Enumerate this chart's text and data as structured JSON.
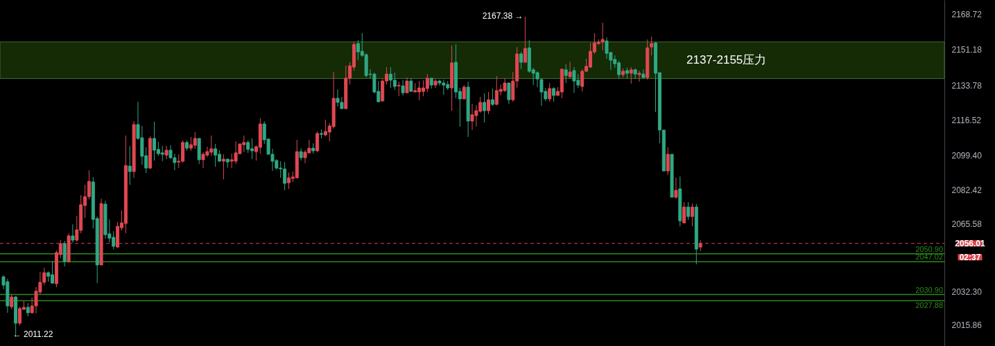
{
  "chart_data": {
    "type": "candlestick",
    "categories": [
      null,
      null,
      null,
      null,
      null,
      null,
      null,
      null,
      null,
      null,
      null,
      null,
      null,
      null,
      null,
      null,
      null,
      null,
      null,
      null,
      null,
      null,
      null,
      null,
      null,
      null,
      null,
      null,
      null,
      null,
      null,
      null,
      null,
      null,
      null,
      null,
      null,
      null,
      null,
      null,
      null,
      null,
      null,
      null,
      null,
      null,
      null,
      null,
      null,
      null,
      null,
      null,
      null,
      null,
      null,
      null,
      null,
      null,
      null,
      null,
      null,
      null,
      null,
      null,
      null,
      null,
      null,
      null,
      null,
      null,
      null,
      null,
      null,
      null,
      null,
      null,
      null,
      null,
      null,
      null,
      null,
      null,
      null,
      null,
      null,
      null,
      null,
      null,
      null,
      null,
      null,
      null,
      null,
      null,
      null,
      null,
      null,
      null,
      null,
      null,
      null,
      null,
      null,
      null,
      null,
      null,
      null,
      null,
      null,
      null,
      null,
      null,
      null,
      null,
      null,
      null,
      null,
      null,
      null,
      null,
      null,
      null,
      null,
      null,
      null,
      null,
      null,
      null,
      null,
      null,
      null,
      null,
      null,
      null,
      null,
      null,
      null,
      null,
      null,
      null,
      null,
      null,
      null,
      null,
      null,
      null,
      null,
      null,
      null,
      null,
      null,
      null,
      null,
      null,
      null,
      null,
      null,
      null,
      null,
      null,
      null,
      null,
      null,
      null,
      null,
      null,
      null,
      null,
      null,
      null,
      null,
      null,
      null,
      null,
      null,
      null,
      null,
      null,
      null,
      null,
      null,
      null,
      null,
      null,
      null,
      null,
      null,
      null,
      null,
      null,
      null,
      null,
      null,
      null,
      null,
      null,
      null,
      null,
      null,
      null,
      null,
      null,
      null,
      null,
      null,
      null,
      null,
      null,
      null,
      null,
      null,
      null,
      null,
      null,
      null,
      null,
      null,
      null,
      null,
      null,
      null,
      null,
      null,
      null,
      null,
      null,
      null,
      null,
      null,
      null,
      null
    ],
    "ohlc": [
      [
        2039.6,
        2040.3,
        2033.5,
        2035.5
      ],
      [
        2037.2,
        2038.6,
        2021.9,
        2025.3
      ],
      [
        2024.9,
        2031.1,
        2023.6,
        2029.7
      ],
      [
        2029.7,
        2030.1,
        2011.22,
        2016.8
      ],
      [
        2016.8,
        2024.9,
        2015.8,
        2024.0
      ],
      [
        2023.6,
        2027.7,
        2023.3,
        2024.6
      ],
      [
        2024.6,
        2026.7,
        2020.2,
        2021.9
      ],
      [
        2021.9,
        2029.4,
        2021.6,
        2025.3
      ],
      [
        2025.3,
        2034.5,
        2021.6,
        2032.5
      ],
      [
        2032.1,
        2042.0,
        2031.1,
        2036.9
      ],
      [
        2036.9,
        2044.0,
        2035.5,
        2041.6
      ],
      [
        2041.6,
        2042.3,
        2037.2,
        2039.9
      ],
      [
        2040.6,
        2047.4,
        2036.2,
        2036.5
      ],
      [
        2036.2,
        2052.5,
        2034.5,
        2051.5
      ],
      [
        2050.5,
        2057.6,
        2048.8,
        2055.9
      ],
      [
        2055.9,
        2057.3,
        2044.7,
        2047.1
      ],
      [
        2047.1,
        2061.0,
        2046.4,
        2059.7
      ],
      [
        2059.7,
        2065.4,
        2056.3,
        2057.6
      ],
      [
        2057.6,
        2069.5,
        2056.9,
        2062.7
      ],
      [
        2062.4,
        2079.7,
        2061.0,
        2075.0
      ],
      [
        2074.6,
        2084.8,
        2068.5,
        2079.0
      ],
      [
        2079.0,
        2091.9,
        2077.7,
        2086.5
      ],
      [
        2086.2,
        2088.6,
        2063.4,
        2067.8
      ],
      [
        2068.2,
        2069.2,
        2036.5,
        2045.4
      ],
      [
        2045.4,
        2078.0,
        2045.4,
        2075.6
      ],
      [
        2075.3,
        2077.0,
        2058.3,
        2060.3
      ],
      [
        2060.7,
        2067.8,
        2056.6,
        2058.6
      ],
      [
        2059.0,
        2062.0,
        2053.2,
        2054.6
      ],
      [
        2054.2,
        2066.5,
        2053.9,
        2064.4
      ],
      [
        2063.7,
        2072.2,
        2062.4,
        2066.1
      ],
      [
        2065.8,
        2109.0,
        2061.0,
        2094.3
      ],
      [
        2094.0,
        2103.9,
        2084.8,
        2091.3
      ],
      [
        2091.3,
        2116.1,
        2088.2,
        2114.4
      ],
      [
        2114.4,
        2125.6,
        2106.9,
        2107.6
      ],
      [
        2107.9,
        2113.7,
        2094.7,
        2098.8
      ],
      [
        2099.1,
        2103.2,
        2090.6,
        2093.0
      ],
      [
        2093.0,
        2108.6,
        2092.6,
        2107.6
      ],
      [
        2107.6,
        2115.8,
        2096.7,
        2101.8
      ],
      [
        2102.2,
        2105.9,
        2099.1,
        2100.1
      ],
      [
        2100.5,
        2103.9,
        2096.4,
        2099.8
      ],
      [
        2099.4,
        2103.9,
        2097.4,
        2101.8
      ],
      [
        2101.8,
        2104.2,
        2097.4,
        2098.1
      ],
      [
        2098.1,
        2100.1,
        2091.9,
        2095.7
      ],
      [
        2096.0,
        2099.8,
        2093.0,
        2096.4
      ],
      [
        2096.4,
        2106.6,
        2095.7,
        2105.6
      ],
      [
        2105.6,
        2106.6,
        2101.5,
        2102.8
      ],
      [
        2102.8,
        2108.3,
        2101.5,
        2104.5
      ],
      [
        2104.2,
        2110.7,
        2102.5,
        2107.6
      ],
      [
        2107.6,
        2107.6,
        2095.0,
        2097.1
      ],
      [
        2097.1,
        2100.8,
        2093.0,
        2099.8
      ],
      [
        2099.4,
        2103.5,
        2098.4,
        2101.1
      ],
      [
        2100.8,
        2109.0,
        2099.1,
        2102.5
      ],
      [
        2102.5,
        2104.9,
        2093.7,
        2099.4
      ],
      [
        2099.8,
        2101.8,
        2096.0,
        2096.4
      ],
      [
        2096.4,
        2099.8,
        2087.5,
        2097.4
      ],
      [
        2097.4,
        2097.7,
        2093.3,
        2096.0
      ],
      [
        2096.4,
        2100.1,
        2093.0,
        2097.1
      ],
      [
        2096.4,
        2106.2,
        2095.0,
        2100.5
      ],
      [
        2100.1,
        2104.9,
        2099.8,
        2104.9
      ],
      [
        2104.5,
        2109.0,
        2100.8,
        2105.6
      ],
      [
        2105.6,
        2106.6,
        2100.5,
        2102.2
      ],
      [
        2102.5,
        2107.6,
        2097.4,
        2101.5
      ],
      [
        2101.1,
        2104.2,
        2096.7,
        2103.5
      ],
      [
        2103.2,
        2117.5,
        2100.1,
        2114.7
      ],
      [
        2114.7,
        2116.1,
        2104.9,
        2106.9
      ],
      [
        2107.3,
        2107.3,
        2099.8,
        2099.8
      ],
      [
        2099.8,
        2102.5,
        2091.6,
        2096.4
      ],
      [
        2096.7,
        2097.4,
        2092.3,
        2093.0
      ],
      [
        2093.0,
        2096.4,
        2088.2,
        2092.6
      ],
      [
        2092.6,
        2096.0,
        2082.1,
        2085.5
      ],
      [
        2085.8,
        2090.9,
        2082.8,
        2088.2
      ],
      [
        2087.9,
        2091.3,
        2086.2,
        2088.6
      ],
      [
        2088.2,
        2106.9,
        2088.2,
        2101.1
      ],
      [
        2101.1,
        2102.8,
        2096.7,
        2098.1
      ],
      [
        2098.1,
        2101.8,
        2095.4,
        2100.8
      ],
      [
        2100.5,
        2106.9,
        2100.1,
        2102.8
      ],
      [
        2102.8,
        2105.2,
        2100.1,
        2101.5
      ],
      [
        2101.5,
        2111.0,
        2100.8,
        2110.0
      ],
      [
        2110.0,
        2112.0,
        2107.6,
        2109.6
      ],
      [
        2109.3,
        2116.8,
        2108.6,
        2111.0
      ],
      [
        2110.7,
        2115.1,
        2106.2,
        2113.7
      ],
      [
        2113.4,
        2140.2,
        2112.4,
        2127.3
      ],
      [
        2127.3,
        2131.7,
        2123.2,
        2125.3
      ],
      [
        2125.3,
        2128.0,
        2122.2,
        2122.2
      ],
      [
        2122.2,
        2143.3,
        2122.2,
        2137.2
      ],
      [
        2137.2,
        2145.0,
        2134.1,
        2143.3
      ],
      [
        2142.6,
        2155.2,
        2140.9,
        2153.8
      ],
      [
        2154.2,
        2155.9,
        2146.0,
        2150.1
      ],
      [
        2150.4,
        2159.3,
        2147.7,
        2148.4
      ],
      [
        2148.7,
        2149.4,
        2137.5,
        2138.5
      ],
      [
        2139.2,
        2141.6,
        2137.2,
        2139.0
      ],
      [
        2139.2,
        2139.9,
        2129.7,
        2130.4
      ],
      [
        2130.7,
        2135.8,
        2125.3,
        2125.6
      ],
      [
        2126.0,
        2136.8,
        2125.6,
        2135.8
      ],
      [
        2135.8,
        2142.6,
        2134.1,
        2139.2
      ],
      [
        2139.2,
        2142.6,
        2132.4,
        2136.2
      ],
      [
        2136.2,
        2139.9,
        2131.4,
        2133.1
      ],
      [
        2133.4,
        2135.5,
        2128.3,
        2133.7
      ],
      [
        2133.4,
        2136.2,
        2128.7,
        2130.0
      ],
      [
        2130.0,
        2137.5,
        2130.0,
        2135.8
      ],
      [
        2135.8,
        2137.2,
        2130.4,
        2130.7
      ],
      [
        2130.4,
        2134.8,
        2130.4,
        2131.1
      ],
      [
        2130.4,
        2135.8,
        2126.3,
        2132.4
      ],
      [
        2130.7,
        2136.2,
        2128.3,
        2132.4
      ],
      [
        2132.1,
        2139.2,
        2130.4,
        2137.2
      ],
      [
        2137.2,
        2137.2,
        2132.1,
        2133.8
      ],
      [
        2133.8,
        2136.8,
        2132.4,
        2135.8
      ],
      [
        2135.8,
        2136.5,
        2133.4,
        2134.8
      ],
      [
        2134.8,
        2136.5,
        2129.0,
        2133.8
      ],
      [
        2134.1,
        2135.8,
        2131.4,
        2132.4
      ],
      [
        2132.4,
        2153.2,
        2121.2,
        2144.7
      ],
      [
        2145.0,
        2153.8,
        2127.3,
        2130.4
      ],
      [
        2130.7,
        2132.4,
        2113.4,
        2127.0
      ],
      [
        2127.0,
        2133.8,
        2127.0,
        2132.8
      ],
      [
        2132.8,
        2135.5,
        2108.3,
        2116.1
      ],
      [
        2116.1,
        2124.6,
        2111.7,
        2119.2
      ],
      [
        2118.8,
        2123.9,
        2113.4,
        2121.2
      ],
      [
        2120.9,
        2128.0,
        2120.2,
        2125.3
      ],
      [
        2125.3,
        2129.7,
        2115.4,
        2121.2
      ],
      [
        2121.2,
        2130.4,
        2119.5,
        2126.6
      ],
      [
        2126.6,
        2132.1,
        2123.6,
        2124.3
      ],
      [
        2124.3,
        2138.2,
        2123.9,
        2131.1
      ],
      [
        2130.7,
        2134.1,
        2128.7,
        2131.7
      ],
      [
        2131.1,
        2137.2,
        2130.4,
        2134.8
      ],
      [
        2134.8,
        2135.1,
        2124.6,
        2126.6
      ],
      [
        2126.6,
        2140.2,
        2125.6,
        2135.8
      ],
      [
        2135.8,
        2152.5,
        2132.4,
        2149.1
      ],
      [
        2149.1,
        2150.1,
        2141.6,
        2145.0
      ],
      [
        2145.0,
        2167.38,
        2145.0,
        2151.8
      ],
      [
        2152.1,
        2155.9,
        2139.9,
        2140.6
      ],
      [
        2141.3,
        2142.3,
        2133.8,
        2139.6
      ],
      [
        2139.9,
        2140.6,
        2132.8,
        2136.8
      ],
      [
        2136.5,
        2137.2,
        2123.6,
        2130.4
      ],
      [
        2130.7,
        2132.4,
        2126.0,
        2127.0
      ],
      [
        2127.0,
        2134.8,
        2125.6,
        2132.1
      ],
      [
        2132.1,
        2132.8,
        2125.6,
        2128.7
      ],
      [
        2128.7,
        2132.8,
        2128.7,
        2130.7
      ],
      [
        2130.4,
        2141.9,
        2127.3,
        2141.6
      ],
      [
        2141.3,
        2144.0,
        2134.8,
        2138.5
      ],
      [
        2137.9,
        2145.3,
        2137.2,
        2140.2
      ],
      [
        2140.9,
        2142.6,
        2130.0,
        2135.8
      ],
      [
        2136.2,
        2139.2,
        2132.4,
        2133.8
      ],
      [
        2133.1,
        2141.6,
        2130.7,
        2140.6
      ],
      [
        2140.6,
        2146.7,
        2140.2,
        2143.0
      ],
      [
        2142.6,
        2154.5,
        2142.3,
        2150.4
      ],
      [
        2150.1,
        2159.3,
        2149.1,
        2154.5
      ],
      [
        2154.2,
        2156.2,
        2153.5,
        2154.9
      ],
      [
        2154.9,
        2164.4,
        2150.8,
        2156.2
      ],
      [
        2155.5,
        2157.2,
        2146.7,
        2149.4
      ],
      [
        2149.8,
        2150.1,
        2141.3,
        2146.0
      ],
      [
        2146.4,
        2148.4,
        2142.3,
        2144.3
      ],
      [
        2144.7,
        2145.7,
        2136.8,
        2138.9
      ],
      [
        2138.9,
        2141.9,
        2137.5,
        2140.6
      ],
      [
        2140.9,
        2142.3,
        2137.2,
        2139.6
      ],
      [
        2139.6,
        2142.6,
        2134.5,
        2141.3
      ],
      [
        2141.3,
        2141.9,
        2136.8,
        2139.2
      ],
      [
        2138.9,
        2140.9,
        2135.5,
        2139.6
      ],
      [
        2139.2,
        2141.6,
        2137.2,
        2137.5
      ],
      [
        2137.5,
        2156.2,
        2136.5,
        2152.1
      ],
      [
        2152.5,
        2157.6,
        2148.4,
        2154.2
      ],
      [
        2154.5,
        2154.9,
        2120.5,
        2139.6
      ],
      [
        2139.9,
        2139.9,
        2105.2,
        2111.7
      ],
      [
        2111.7,
        2111.7,
        2091.6,
        2091.6
      ],
      [
        2091.6,
        2103.2,
        2089.6,
        2099.8
      ],
      [
        2099.8,
        2099.8,
        2078.7,
        2078.7
      ],
      [
        2078.7,
        2088.2,
        2078.0,
        2082.1
      ],
      [
        2082.8,
        2088.9,
        2064.4,
        2067.1
      ],
      [
        2066.1,
        2076.3,
        2065.8,
        2073.9
      ],
      [
        2073.9,
        2076.3,
        2067.5,
        2069.2
      ],
      [
        2069.2,
        2075.6,
        2064.4,
        2073.9
      ],
      [
        2073.9,
        2075.3,
        2045.7,
        2053.2
      ],
      [
        2054.2,
        2057.6,
        2052.2,
        2056.01
      ],
      null,
      null,
      null,
      null,
      null,
      null,
      null,
      null,
      null,
      null,
      null,
      null,
      null,
      null,
      null,
      null,
      null,
      null,
      null,
      null,
      null,
      null,
      null,
      null,
      null,
      null,
      null,
      null,
      null,
      null,
      null,
      null,
      null,
      null,
      null,
      null,
      null,
      null,
      null,
      null,
      null,
      null,
      null,
      null,
      null,
      null,
      null,
      null,
      null,
      null,
      null,
      null,
      null,
      null,
      null,
      null,
      null,
      null,
      null
    ],
    "colors": [
      "#2fa884",
      "#2fa884",
      "#e04852",
      "#2fa884",
      "#e04852",
      "#e04852",
      "#2fa884",
      "#e04852",
      "#e04852",
      "#e04852",
      "#e04852",
      "#2fa884",
      "#2fa884",
      "#e04852",
      "#e04852",
      "#2fa884",
      "#e04852",
      "#2fa884",
      "#e04852",
      "#e04852",
      "#e04852",
      "#e04852",
      "#2fa884",
      "#2fa884",
      "#e04852",
      "#2fa884",
      "#2fa884",
      "#2fa884",
      "#e04852",
      "#e04852",
      "#e04852",
      "#2fa884",
      "#e04852",
      "#2fa884",
      "#2fa884",
      "#2fa884",
      "#e04852",
      "#2fa884",
      "#2fa884",
      "#2fa884",
      "#e04852",
      "#2fa884",
      "#2fa884",
      "#e04852",
      "#e04852",
      "#2fa884",
      "#e04852",
      "#e04852",
      "#2fa884",
      "#e04852",
      "#e04852",
      "#e04852",
      "#2fa884",
      "#2fa884",
      "#e04852",
      "#2fa884",
      "#e04852",
      "#e04852",
      "#e04852",
      "#e04852",
      "#2fa884",
      "#2fa884",
      "#e04852",
      "#e04852",
      "#2fa884",
      "#2fa884",
      "#2fa884",
      "#2fa884",
      "#2fa884",
      "#2fa884",
      "#e04852",
      "#e04852",
      "#e04852",
      "#2fa884",
      "#e04852",
      "#e04852",
      "#2fa884",
      "#e04852",
      "#2fa884",
      "#e04852",
      "#e04852",
      "#e04852",
      "#2fa884",
      "#2fa884",
      "#e04852",
      "#e04852",
      "#e04852",
      "#2fa884",
      "#2fa884",
      "#2fa884",
      "#2fa884",
      "#2fa884",
      "#2fa884",
      "#e04852",
      "#e04852",
      "#2fa884",
      "#2fa884",
      "#e04852",
      "#2fa884",
      "#e04852",
      "#2fa884",
      "#e04852",
      "#e04852",
      "#e04852",
      "#e04852",
      "#2fa884",
      "#e04852",
      "#2fa884",
      "#2fa884",
      "#2fa884",
      "#e04852",
      "#2fa884",
      "#2fa884",
      "#e04852",
      "#2fa884",
      "#e04852",
      "#e04852",
      "#e04852",
      "#2fa884",
      "#e04852",
      "#2fa884",
      "#e04852",
      "#e04852",
      "#e04852",
      "#2fa884",
      "#e04852",
      "#e04852",
      "#2fa884",
      "#e04852",
      "#2fa884",
      "#2fa884",
      "#2fa884",
      "#2fa884",
      "#2fa884",
      "#e04852",
      "#2fa884",
      "#e04852",
      "#e04852",
      "#2fa884",
      "#e04852",
      "#2fa884",
      "#2fa884",
      "#e04852",
      "#e04852",
      "#e04852",
      "#e04852",
      "#e04852",
      "#e04852",
      "#2fa884",
      "#2fa884",
      "#2fa884",
      "#2fa884",
      "#e04852",
      "#2fa884",
      "#e04852",
      "#2fa884",
      "#e04852",
      "#2fa884",
      "#e04852",
      "#e04852",
      "#2fa884",
      "#2fa884",
      "#2fa884",
      "#e04852",
      "#2fa884",
      "#e04852",
      "#2fa884",
      "#e04852",
      "#2fa884",
      "#e04852",
      "#2fa884",
      "#e04852",
      null,
      null,
      null,
      null,
      null,
      null,
      null,
      null,
      null,
      null,
      null,
      null,
      null,
      null,
      null,
      null,
      null,
      null,
      null,
      null,
      null,
      null,
      null,
      null,
      null,
      null,
      null,
      null,
      null,
      null,
      null,
      null,
      null,
      null,
      null,
      null,
      null,
      null,
      null,
      null,
      null,
      null,
      null,
      null,
      null,
      null,
      null,
      null,
      null,
      null,
      null,
      null,
      null,
      null,
      null,
      null,
      null,
      null,
      null
    ],
    "ylim": [
      2005.6,
      2175.6
    ],
    "yticks": [
      2015.86,
      {
        "value": 2032.3,
        "label": "2032.30"
      },
      2065.58,
      2082.42,
      {
        "value": 2099.4,
        "label": "2099.40"
      },
      2116.52,
      2133.78,
      2151.18,
      2168.72
    ],
    "tick_labels": "y",
    "grid": false,
    "bands": [
      {
        "axis": "y",
        "from": 2137,
        "to": 2155,
        "label": "2137-2155压力",
        "color": "#142b06"
      }
    ],
    "ref_lines": [
      {
        "axis": "y",
        "value": 2056.01,
        "label": "2056.01",
        "color": "#d9434b",
        "line_style": "dashed"
      },
      {
        "axis": "y",
        "value": 2050.9,
        "label": "2050.90",
        "color": "#2e8a1e",
        "line_style": "solid"
      },
      {
        "axis": "y",
        "value": 2047.02,
        "label": "2047.02",
        "color": "#2e8a1e",
        "line_style": "solid"
      },
      {
        "axis": "y",
        "value": 2030.9,
        "label": "2030.90",
        "color": "#2e8a1e",
        "line_style": "solid"
      },
      {
        "axis": "y",
        "value": 2027.88,
        "label": "2027.88",
        "color": "#2e8a1e",
        "line_style": "solid"
      }
    ],
    "annotations": [
      "2167.38 →",
      "← 2011.22",
      "02:37"
    ]
  }
}
